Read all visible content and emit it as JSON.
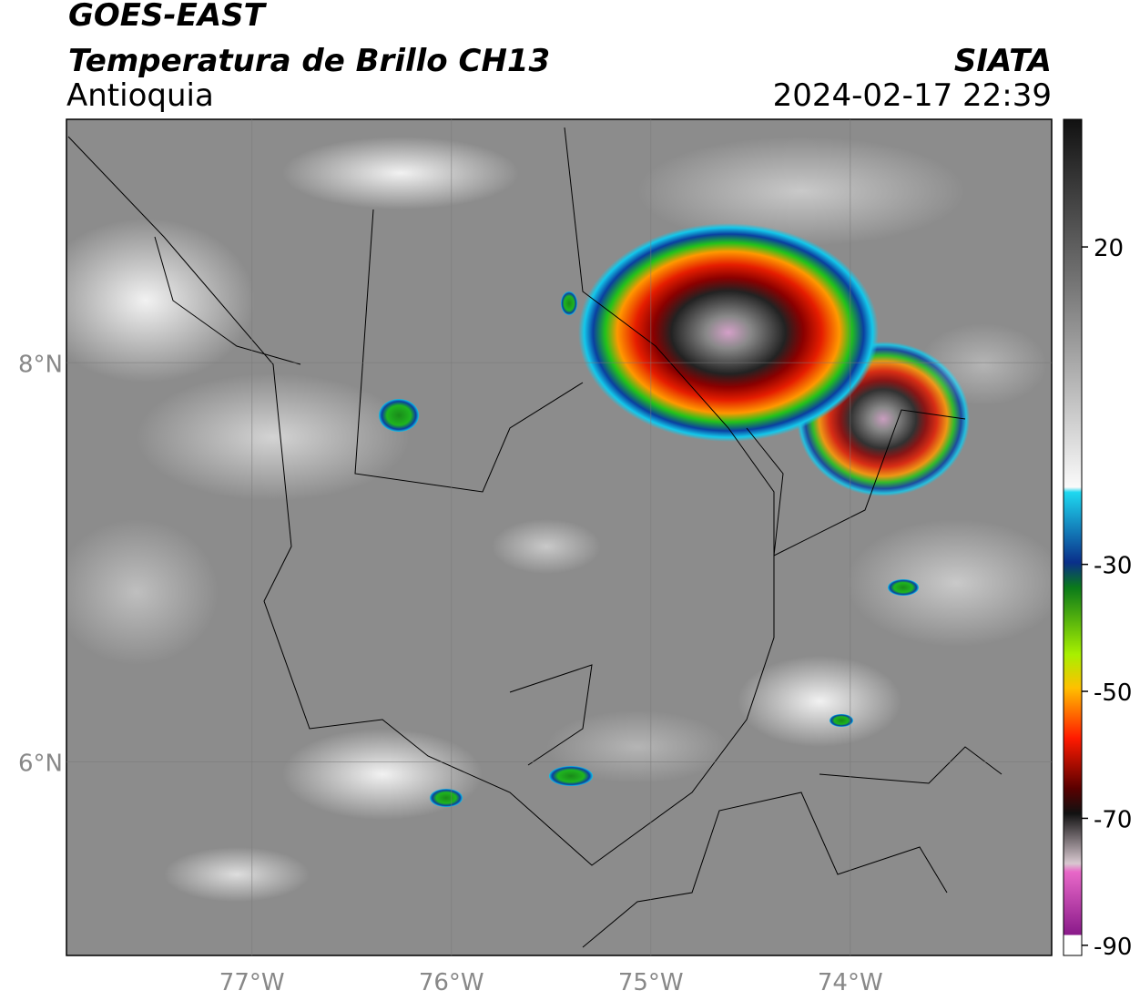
{
  "header": {
    "title": "GOES-EAST",
    "subtitle": "Temperatura de Brillo CH13",
    "region": "Antioquia",
    "source": "SIATA",
    "datetime": "2024-02-17 22:39"
  },
  "map": {
    "lon_range": [
      -77.93,
      -72.99
    ],
    "lat_range": [
      5.03,
      9.22
    ],
    "lon_ticks": [
      {
        "value": -77,
        "label": "77°W"
      },
      {
        "value": -76,
        "label": "76°W"
      },
      {
        "value": -75,
        "label": "75°W"
      },
      {
        "value": -74,
        "label": "74°W"
      }
    ],
    "lat_ticks": [
      {
        "value": 8,
        "label": "8°N"
      },
      {
        "value": 6,
        "label": "6°N"
      }
    ]
  },
  "colorbar": {
    "range": [
      -91.6,
      40.1
    ],
    "ticks": [
      20,
      -30,
      -50,
      -70,
      -90
    ]
  }
}
